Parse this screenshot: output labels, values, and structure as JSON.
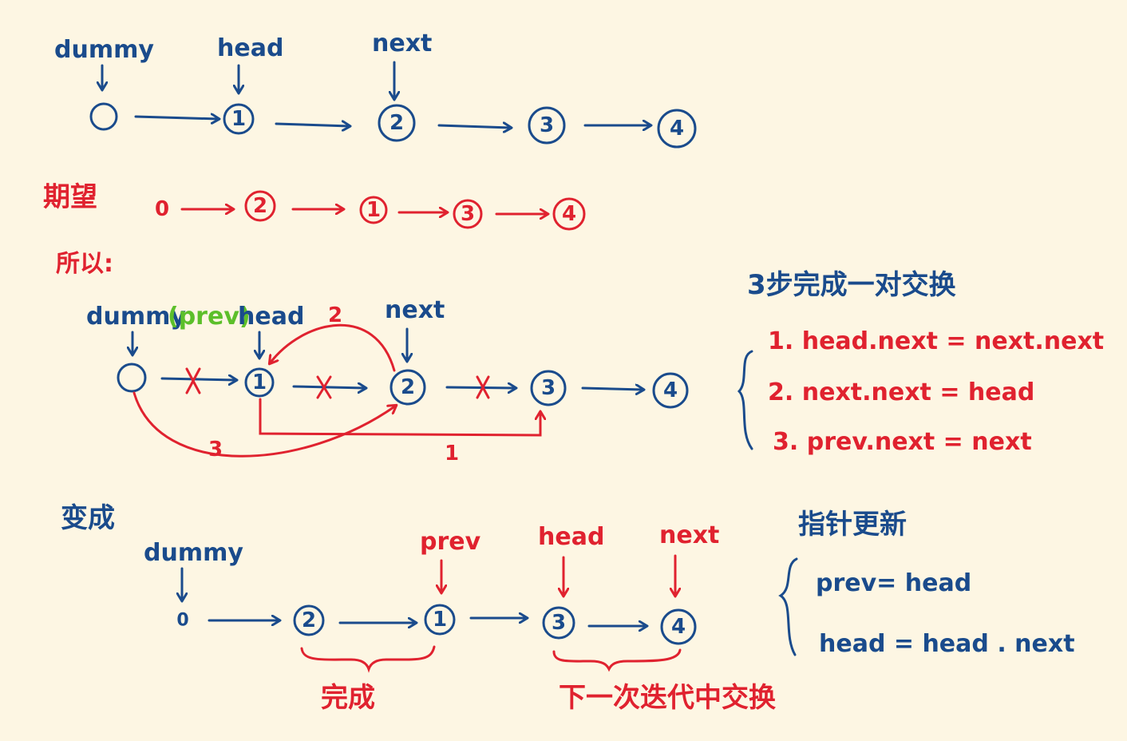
{
  "colors": {
    "blue": "#1a4b8c",
    "red": "#e0222f",
    "green": "#5cbf2a",
    "background": "#fdf6e3"
  },
  "row1": {
    "labels": {
      "dummy": "dummy",
      "head": "head",
      "next": "next"
    },
    "nodes": [
      "",
      "1",
      "2",
      "3",
      "4"
    ]
  },
  "row2": {
    "label": "期望",
    "nodes": [
      "0",
      "2",
      "1",
      "3",
      "4"
    ]
  },
  "row3": {
    "label": "所以:",
    "labels": {
      "dummy": "dummy",
      "prev": "(prev)",
      "head": "head",
      "next": "next"
    },
    "nodes": [
      "",
      "1",
      "2",
      "3",
      "4"
    ],
    "step_numbers": [
      "1",
      "2",
      "3"
    ]
  },
  "steps": {
    "title": "3步完成一对交换",
    "items": [
      "1. head.next = next.next",
      "2. next.next = head",
      "3. prev.next = next"
    ]
  },
  "row4": {
    "label": "变成",
    "labels": {
      "dummy": "dummy",
      "prev": "prev",
      "head": "head",
      "next": "next"
    },
    "nodes": [
      "0",
      "2",
      "1",
      "3",
      "4"
    ],
    "done": "完成",
    "next_swap": "下一次迭代中交换"
  },
  "update": {
    "title": "指针更新",
    "items": [
      "prev= head",
      "head = head . next"
    ]
  }
}
